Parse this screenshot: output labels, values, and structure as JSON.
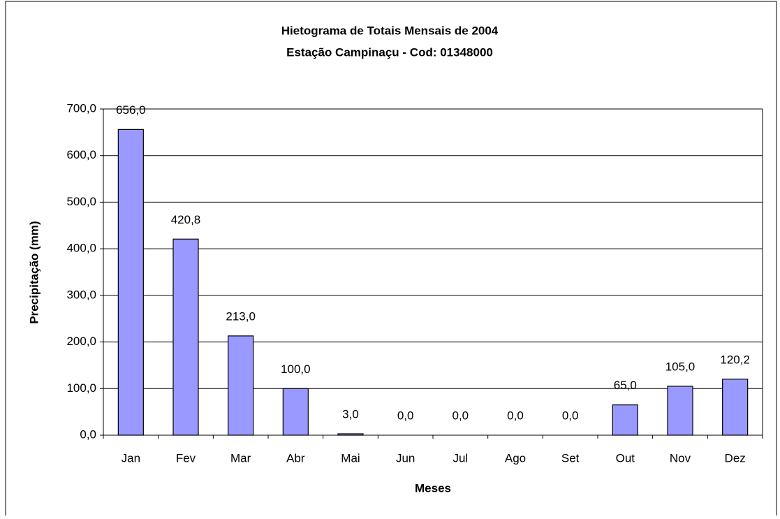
{
  "chart_data": {
    "type": "bar",
    "title": "Hietograma de Totais Mensais de 2004",
    "subtitle": "Estação Campinaçu - Cod: 01348000",
    "x_label": "Meses",
    "y_label": "Precipitação (mm)",
    "categories": [
      "Jan",
      "Fev",
      "Mar",
      "Abr",
      "Mai",
      "Jun",
      "Jul",
      "Ago",
      "Set",
      "Out",
      "Nov",
      "Dez"
    ],
    "values": [
      656.0,
      420.8,
      213.0,
      100.0,
      3.0,
      0.0,
      0.0,
      0.0,
      0.0,
      65.0,
      105.0,
      120.2
    ],
    "value_labels": [
      "656,0",
      "420,8",
      "213,0",
      "100,0",
      "3,0",
      "0,0",
      "0,0",
      "0,0",
      "0,0",
      "65,0",
      "105,0",
      "120,2"
    ],
    "color": "#9999ff",
    "ylim": [
      0,
      700
    ],
    "yticks": [
      {
        "value": 0,
        "label": "0,0"
      },
      {
        "value": 100,
        "label": "100,0"
      },
      {
        "value": 200,
        "label": "200,0"
      },
      {
        "value": 300,
        "label": "300,0"
      },
      {
        "value": 400,
        "label": "400,0"
      },
      {
        "value": 500,
        "label": "500,0"
      },
      {
        "value": 600,
        "label": "600,0"
      },
      {
        "value": 700,
        "label": "700,0"
      }
    ],
    "grid": true
  }
}
